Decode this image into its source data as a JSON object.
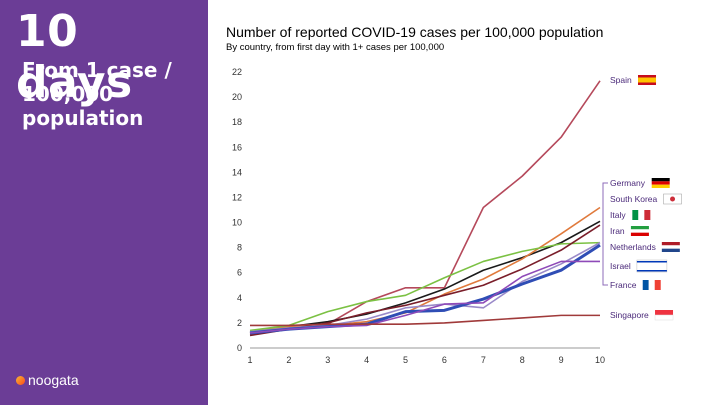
{
  "sidebar": {
    "title": "10 days",
    "subtitle": "From 1 case / 100,000 population",
    "logo": "noogata"
  },
  "chart_data": {
    "type": "line",
    "title": "Number of reported COVID-19 cases per 100,000 population",
    "subtitle": "By country, from first day with 1+ cases per 100,000",
    "xlabel": "",
    "ylabel": "",
    "xlim": [
      1,
      10
    ],
    "ylim": [
      0,
      22
    ],
    "x": [
      1,
      2,
      3,
      4,
      5,
      6,
      7,
      8,
      9,
      10
    ],
    "x_ticks": [
      1,
      2,
      3,
      4,
      5,
      6,
      7,
      8,
      9,
      10
    ],
    "y_ticks": [
      0,
      2,
      4,
      6,
      8,
      10,
      12,
      14,
      16,
      18,
      20,
      22
    ],
    "grid": false,
    "series": [
      {
        "name": "Spain",
        "color": "#b5495b",
        "values": [
          1.1,
          1.6,
          1.9,
          3.7,
          4.8,
          4.8,
          11.2,
          13.7,
          16.8,
          21.3
        ]
      },
      {
        "name": "Germany",
        "color": "#1a1a1a",
        "values": [
          1.2,
          1.7,
          2.1,
          2.7,
          3.6,
          4.7,
          6.2,
          7.2,
          8.4,
          10.1
        ]
      },
      {
        "name": "South Korea",
        "color": "#e07a3c",
        "values": [
          1.3,
          1.7,
          1.8,
          2.1,
          2.8,
          4.3,
          5.5,
          7.1,
          9.1,
          11.2
        ]
      },
      {
        "name": "Italy",
        "color": "#7bc143",
        "values": [
          1.4,
          1.8,
          2.9,
          3.7,
          4.2,
          5.6,
          6.9,
          7.7,
          8.3,
          8.4
        ]
      },
      {
        "name": "Iran",
        "color": "#7a1e2a",
        "values": [
          1.0,
          1.5,
          2.0,
          2.8,
          3.4,
          4.2,
          5.0,
          6.3,
          7.8,
          9.8
        ]
      },
      {
        "name": "Netherlands",
        "color": "#9a8ac9",
        "values": [
          1.3,
          1.6,
          1.8,
          2.3,
          3.2,
          3.5,
          3.2,
          5.3,
          6.7,
          8.4
        ]
      },
      {
        "name": "Israel",
        "color": "#2f4db5",
        "values": [
          1.2,
          1.5,
          1.7,
          1.9,
          2.9,
          3.0,
          3.9,
          5.1,
          6.2,
          8.2
        ]
      },
      {
        "name": "France",
        "color": "#8e4ab8",
        "values": [
          1.2,
          1.5,
          1.7,
          1.8,
          2.6,
          3.5,
          3.6,
          5.7,
          6.9,
          6.9
        ]
      },
      {
        "name": "Singapore",
        "color": "#a03a3a",
        "values": [
          1.8,
          1.8,
          1.9,
          1.9,
          1.9,
          2.0,
          2.2,
          2.4,
          2.6,
          2.6
        ]
      }
    ],
    "labels": [
      {
        "name": "Spain",
        "flag": "spain-flag-icon"
      },
      {
        "name": "Germany",
        "flag": "germany-flag-icon"
      },
      {
        "name": "South Korea",
        "flag": "south-korea-flag-icon"
      },
      {
        "name": "Italy",
        "flag": "italy-flag-icon"
      },
      {
        "name": "Iran",
        "flag": "iran-flag-icon"
      },
      {
        "name": "Netherlands",
        "flag": "netherlands-flag-icon"
      },
      {
        "name": "Israel",
        "flag": "israel-flag-icon"
      },
      {
        "name": "France",
        "flag": "france-flag-icon"
      },
      {
        "name": "Singapore",
        "flag": "singapore-flag-icon"
      }
    ]
  }
}
